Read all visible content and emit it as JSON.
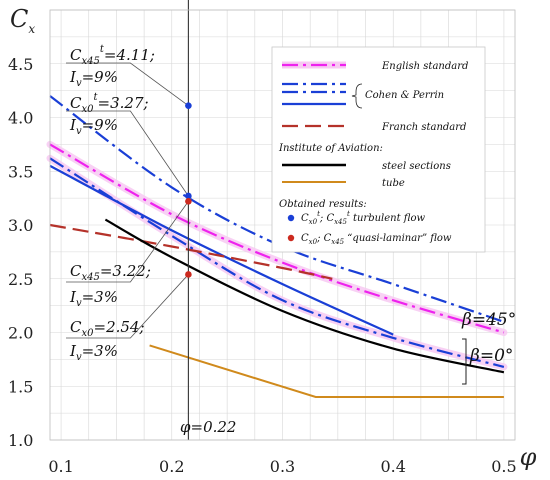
{
  "chart_data": {
    "type": "line",
    "xlabel": "φ",
    "ylabel": "Cx",
    "xlim": [
      0.09,
      0.51
    ],
    "ylim": [
      1.0,
      5.0
    ],
    "x_ticks": [
      0.1,
      0.2,
      0.3,
      0.4,
      0.5
    ],
    "x_tick_labels": [
      "0.1",
      "0.2",
      "0.3",
      "0.4",
      "0.5"
    ],
    "y_ticks": [
      1.0,
      1.5,
      2.0,
      2.5,
      3.0,
      3.5,
      4.0,
      4.5
    ],
    "y_tick_labels": [
      "1.0",
      "1.5",
      "2.0",
      "2.5",
      "3.0",
      "3.5",
      "4.0",
      "4.5"
    ],
    "grid": true,
    "series": [
      {
        "name": "English standard",
        "color": "#ee22ee",
        "dash": "dashdot",
        "x": [
          0.09,
          0.2,
          0.3,
          0.4,
          0.5
        ],
        "y": [
          3.75,
          3.1,
          2.65,
          2.3,
          2.0
        ],
        "halo": true
      },
      {
        "name": "Cohen & Perrin",
        "color": "#1a3fd6",
        "dash": "dashdot",
        "x": [
          0.09,
          0.2,
          0.3,
          0.4,
          0.5
        ],
        "y": [
          4.2,
          3.35,
          2.8,
          2.45,
          2.1
        ],
        "halo": false
      },
      {
        "name": "Cohen & Perrin",
        "color": "#1a3fd6",
        "dash": "dashdot",
        "x": [
          0.09,
          0.2,
          0.3,
          0.4,
          0.5
        ],
        "y": [
          3.62,
          2.9,
          2.3,
          1.95,
          1.68
        ],
        "halo": true
      },
      {
        "name": "Cohen & Perrin",
        "color": "#1a3fd6",
        "dash": "solid",
        "x": [
          0.09,
          0.2,
          0.3,
          0.4
        ],
        "y": [
          3.55,
          2.95,
          2.45,
          1.98
        ],
        "halo": false
      },
      {
        "name": "Franch standard",
        "color": "#b5322a",
        "dash": "longdash",
        "x": [
          0.09,
          0.2,
          0.3,
          0.345
        ],
        "y": [
          3.0,
          2.8,
          2.6,
          2.5
        ],
        "halo": false
      },
      {
        "name": "steel sections",
        "color": "#000000",
        "dash": "solid",
        "x": [
          0.14,
          0.2,
          0.3,
          0.4,
          0.5
        ],
        "y": [
          3.05,
          2.7,
          2.2,
          1.85,
          1.63
        ],
        "halo": false
      },
      {
        "name": "tube",
        "color": "#d08a1c",
        "dash": "solid",
        "x": [
          0.18,
          0.33,
          0.5
        ],
        "y": [
          1.88,
          1.4,
          1.4
        ],
        "halo": false
      }
    ],
    "points": [
      {
        "x": 0.215,
        "y": 4.11,
        "color": "#1a3fd6"
      },
      {
        "x": 0.215,
        "y": 3.27,
        "color": "#1a3fd6"
      },
      {
        "x": 0.215,
        "y": 3.22,
        "color": "#cc2a1f"
      },
      {
        "x": 0.215,
        "y": 2.54,
        "color": "#cc2a1f"
      }
    ],
    "vline": {
      "x": 0.215,
      "label": "φ=0.22"
    },
    "annotations": [
      {
        "label1": "Cx45t=4.11;",
        "label2": "Iv=9%",
        "x": 0.215,
        "y": 4.11
      },
      {
        "label1": "Cx0t=3.27;",
        "label2": "Iv=9%",
        "x": 0.215,
        "y": 3.27
      },
      {
        "label1": "Cx45=3.22;",
        "label2": "Iv=3%",
        "x": 0.215,
        "y": 3.22
      },
      {
        "label1": "Cx0=2.54;",
        "label2": "Iv=3%",
        "x": 0.215,
        "y": 2.54
      }
    ],
    "beta_labels": [
      "β=45°",
      "β=0°"
    ],
    "legend": {
      "position": "top-right",
      "entries": [
        {
          "label": "English standard",
          "color": "#ee22ee",
          "dash": "dashdot",
          "halo": true
        },
        {
          "label": "",
          "color": "#1a3fd6",
          "dash": "dashdot"
        },
        {
          "label": "",
          "color": "#1a3fd6",
          "dash": "dashdot"
        },
        {
          "label": "",
          "color": "#1a3fd6",
          "dash": "solid"
        },
        {
          "label": "Franch standard",
          "color": "#b5322a",
          "dash": "longdash"
        }
      ],
      "brace_label": "Cohen & Perrin",
      "section_title": "Institute of Aviation:",
      "aviation_entries": [
        {
          "label": "steel sections",
          "color": "#000000"
        },
        {
          "label": "tube",
          "color": "#d08a1c"
        }
      ],
      "results_title": "Obtained results:",
      "results": [
        {
          "label": "Cx0t; Cx45t turbulent flow",
          "color": "#1a3fd6"
        },
        {
          "label": "Cx0 ; Cx45 “quasi-laminar” flow",
          "color": "#cc2a1f"
        }
      ]
    }
  }
}
